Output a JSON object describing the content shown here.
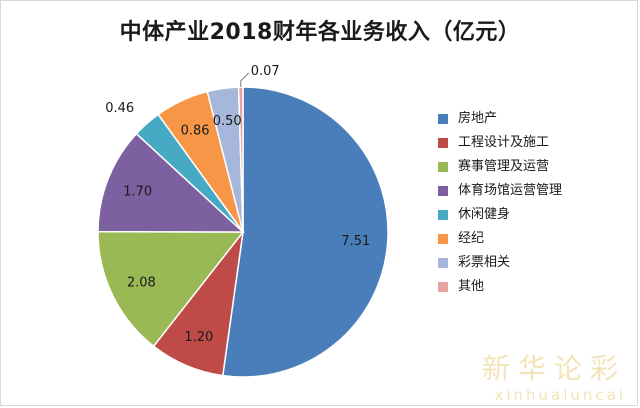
{
  "chart_data": {
    "type": "pie",
    "title": "中体产业2018财年各业务收入（亿元）",
    "categories": [
      "房地产",
      "工程设计及施工",
      "赛事管理及运营",
      "体育场馆运营管理",
      "休闲健身",
      "经纪",
      "彩票相关",
      "其他"
    ],
    "values": [
      7.51,
      1.2,
      2.08,
      1.7,
      0.46,
      0.86,
      0.5,
      0.07
    ],
    "data_labels": [
      "7.51",
      "1.20",
      "2.08",
      "1.70",
      "0.46",
      "0.86",
      "0.50",
      "0.07"
    ],
    "colors": [
      "#4a7ebb",
      "#be4b48",
      "#98b954",
      "#7d60a0",
      "#46aac5",
      "#f79646",
      "#a5b8db",
      "#e6a3a0"
    ],
    "legend_position": "right",
    "start_angle": "top",
    "direction": "clockwise"
  },
  "watermark": {
    "text_cn": "新华论彩",
    "text_en": "xinhualuncai"
  }
}
